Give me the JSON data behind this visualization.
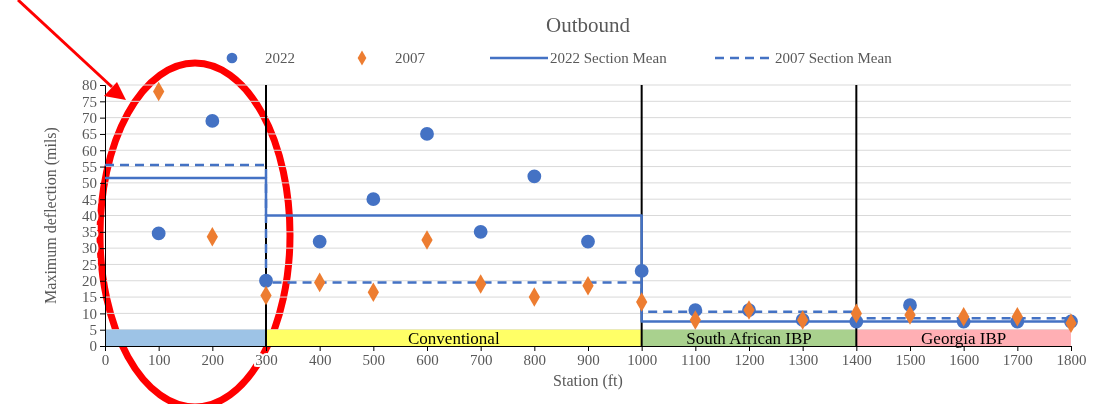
{
  "chart_data": {
    "type": "scatter",
    "title": "Outbound",
    "xlabel": "Station (ft)",
    "ylabel": "Maximum deflection (mils)",
    "xlim": [
      0,
      1800
    ],
    "xticks": [
      0,
      100,
      200,
      300,
      400,
      500,
      600,
      700,
      800,
      900,
      1000,
      1100,
      1200,
      1300,
      1400,
      1500,
      1600,
      1700,
      1800
    ],
    "ylim": [
      0,
      80
    ],
    "yticks": [
      0,
      5,
      10,
      15,
      20,
      25,
      30,
      35,
      40,
      45,
      50,
      55,
      60,
      65,
      70,
      75,
      80
    ],
    "grid": "y",
    "legend": "top",
    "series": [
      {
        "name": "2022",
        "marker": "circle",
        "color": "#4472c4",
        "x": [
          100,
          200,
          300,
          400,
          500,
          600,
          700,
          800,
          900,
          1000,
          1100,
          1200,
          1300,
          1400,
          1500,
          1600,
          1700,
          1800
        ],
        "values": [
          34.5,
          69,
          20,
          32,
          45,
          65,
          35,
          52,
          32,
          23,
          11,
          11,
          8,
          7.5,
          12.5,
          7.5,
          7.5,
          7.5
        ]
      },
      {
        "name": "2007",
        "marker": "diamond",
        "color": "#ed7d31",
        "x": [
          100,
          200,
          300,
          400,
          500,
          600,
          700,
          800,
          900,
          1000,
          1100,
          1200,
          1300,
          1400,
          1500,
          1600,
          1700,
          1800
        ],
        "values": [
          78,
          33.5,
          15.5,
          19.5,
          16.5,
          32.5,
          19,
          15,
          18.5,
          13.5,
          8,
          11,
          8,
          10,
          9.5,
          9,
          9,
          7
        ]
      },
      {
        "name": "2022 Section Mean",
        "type": "line",
        "marker": "none",
        "line_style": "solid",
        "color": "#4472c4",
        "x": [
          0,
          300,
          300,
          1000,
          1000,
          1400,
          1400,
          1800
        ],
        "values": [
          51.5,
          51.5,
          40,
          40,
          7.5,
          7.5,
          7.5,
          7.5
        ]
      },
      {
        "name": "2007 Section Mean",
        "type": "line",
        "marker": "none",
        "line_style": "dashed",
        "color": "#4472c4",
        "x": [
          0,
          300,
          300,
          1000,
          1000,
          1400,
          1400,
          1800
        ],
        "values": [
          55.5,
          55.5,
          19.5,
          19.5,
          10.5,
          10.5,
          8.5,
          8.5
        ]
      }
    ],
    "ref_lines": [
      {
        "axis": "x",
        "value": 300,
        "color": "#000000"
      },
      {
        "axis": "x",
        "value": 1000,
        "color": "#000000"
      },
      {
        "axis": "x",
        "value": 1400,
        "color": "#000000"
      }
    ],
    "bands": [
      {
        "axis": "x",
        "from": 0,
        "to": 300,
        "color": "#9dc3e6"
      },
      {
        "axis": "x",
        "from": 300,
        "to": 1000,
        "label": "Conventional",
        "color": "#ffff66"
      },
      {
        "axis": "x",
        "from": 1000,
        "to": 1400,
        "label": "South African IBP",
        "color": "#a9d18e"
      },
      {
        "axis": "x",
        "from": 1400,
        "to": 1800,
        "label": "Georgia IBP",
        "color": "#ffafb4"
      }
    ]
  }
}
